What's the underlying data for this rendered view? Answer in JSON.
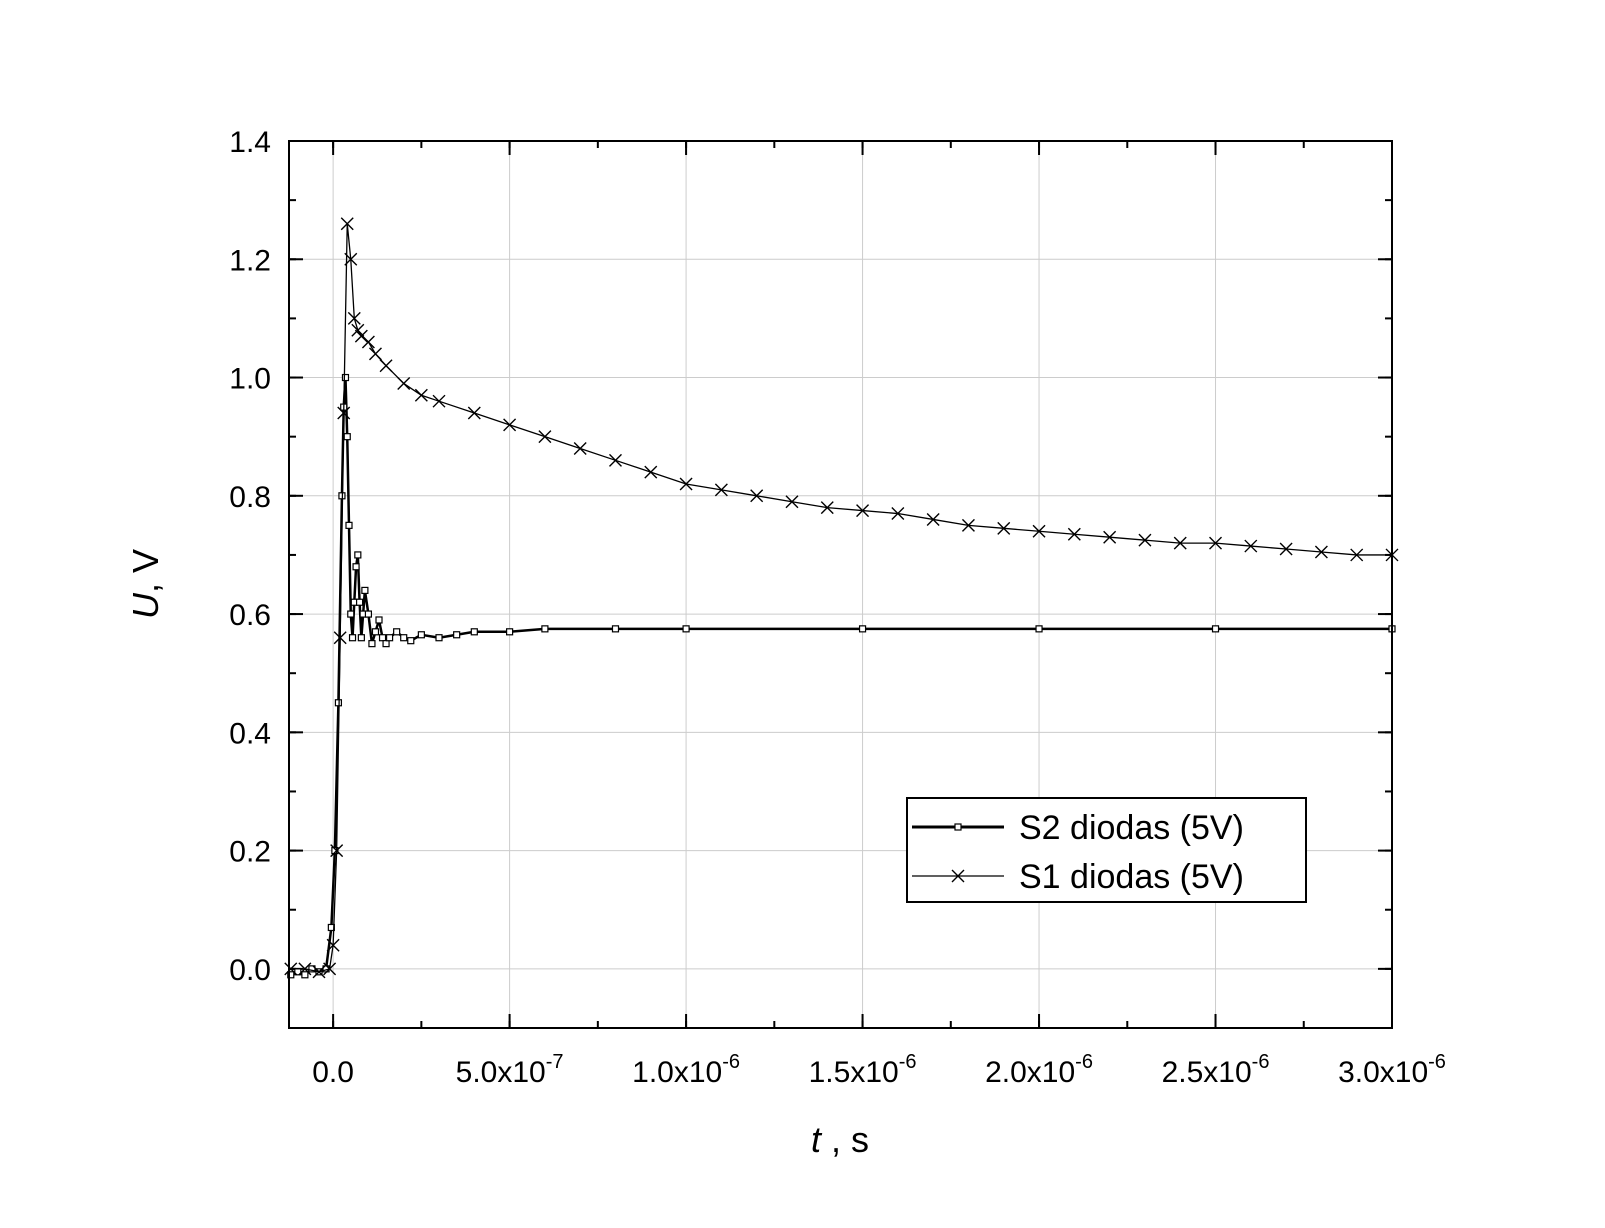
{
  "chart_data": {
    "type": "line",
    "xlabel_italic": "t",
    "xlabel_unit": " , s",
    "ylabel_italic": "U",
    "ylabel_unit": ", V",
    "xlim": [
      -1.25e-07,
      3e-06
    ],
    "ylim": [
      -0.1,
      1.4
    ],
    "grid": true,
    "legend_position": "lower-right",
    "x_ticks": [
      {
        "value": 0,
        "mantissa": "0.0",
        "exp": ""
      },
      {
        "value": 5e-07,
        "mantissa": "5.0x10",
        "exp": "-7"
      },
      {
        "value": 1e-06,
        "mantissa": "1.0x10",
        "exp": "-6"
      },
      {
        "value": 1.5e-06,
        "mantissa": "1.5x10",
        "exp": "-6"
      },
      {
        "value": 2e-06,
        "mantissa": "2.0x10",
        "exp": "-6"
      },
      {
        "value": 2.5e-06,
        "mantissa": "2.5x10",
        "exp": "-6"
      },
      {
        "value": 3e-06,
        "mantissa": "3.0x10",
        "exp": "-6"
      }
    ],
    "y_ticks": [
      "0.0",
      "0.2",
      "0.4",
      "0.6",
      "0.8",
      "1.0",
      "1.2",
      "1.4"
    ],
    "series": [
      {
        "name": "S2 diodas (5V)",
        "marker": "square",
        "color": "#000000",
        "x": [
          -1.2e-07,
          -1e-07,
          -8e-08,
          -6e-08,
          -4e-08,
          -2e-08,
          -5e-09,
          5e-09,
          1.5e-08,
          2.5e-08,
          3e-08,
          3.5e-08,
          4e-08,
          4.5e-08,
          5e-08,
          5.5e-08,
          6e-08,
          6.5e-08,
          7e-08,
          7.5e-08,
          8e-08,
          8.5e-08,
          9e-08,
          1e-07,
          1.1e-07,
          1.2e-07,
          1.3e-07,
          1.4e-07,
          1.5e-07,
          1.6e-07,
          1.8e-07,
          2e-07,
          2.2e-07,
          2.5e-07,
          3e-07,
          3.5e-07,
          4e-07,
          5e-07,
          6e-07,
          8e-07,
          1e-06,
          1.5e-06,
          2e-06,
          2.5e-06,
          3e-06
        ],
        "y": [
          -0.01,
          -0.005,
          -0.01,
          0.0,
          -0.005,
          0.0,
          0.07,
          0.2,
          0.45,
          0.8,
          0.95,
          1.0,
          0.9,
          0.75,
          0.6,
          0.56,
          0.62,
          0.68,
          0.7,
          0.62,
          0.56,
          0.6,
          0.64,
          0.6,
          0.55,
          0.57,
          0.59,
          0.56,
          0.55,
          0.56,
          0.57,
          0.56,
          0.555,
          0.565,
          0.56,
          0.565,
          0.57,
          0.57,
          0.575,
          0.575,
          0.575,
          0.575,
          0.575,
          0.575,
          0.575
        ]
      },
      {
        "name": "S1 diodas (5V)",
        "marker": "cross",
        "color": "#000000",
        "x": [
          -1.2e-07,
          -8e-08,
          -4e-08,
          -1e-08,
          0,
          1e-08,
          2e-08,
          3e-08,
          4e-08,
          5e-08,
          6e-08,
          7e-08,
          8e-08,
          1e-07,
          1.2e-07,
          1.5e-07,
          2e-07,
          2.5e-07,
          3e-07,
          4e-07,
          5e-07,
          6e-07,
          7e-07,
          8e-07,
          9e-07,
          1e-06,
          1.1e-06,
          1.2e-06,
          1.3e-06,
          1.4e-06,
          1.5e-06,
          1.6e-06,
          1.7e-06,
          1.8e-06,
          1.9e-06,
          2e-06,
          2.1e-06,
          2.2e-06,
          2.3e-06,
          2.4e-06,
          2.5e-06,
          2.6e-06,
          2.7e-06,
          2.8e-06,
          2.9e-06,
          3e-06
        ],
        "y": [
          0.0,
          0.0,
          -0.005,
          0.0,
          0.04,
          0.2,
          0.56,
          0.94,
          1.26,
          1.2,
          1.1,
          1.08,
          1.07,
          1.06,
          1.04,
          1.02,
          0.99,
          0.97,
          0.96,
          0.94,
          0.92,
          0.9,
          0.88,
          0.86,
          0.84,
          0.82,
          0.81,
          0.8,
          0.79,
          0.78,
          0.775,
          0.77,
          0.76,
          0.75,
          0.745,
          0.74,
          0.735,
          0.73,
          0.725,
          0.72,
          0.72,
          0.715,
          0.71,
          0.705,
          0.7,
          0.7
        ]
      }
    ]
  }
}
